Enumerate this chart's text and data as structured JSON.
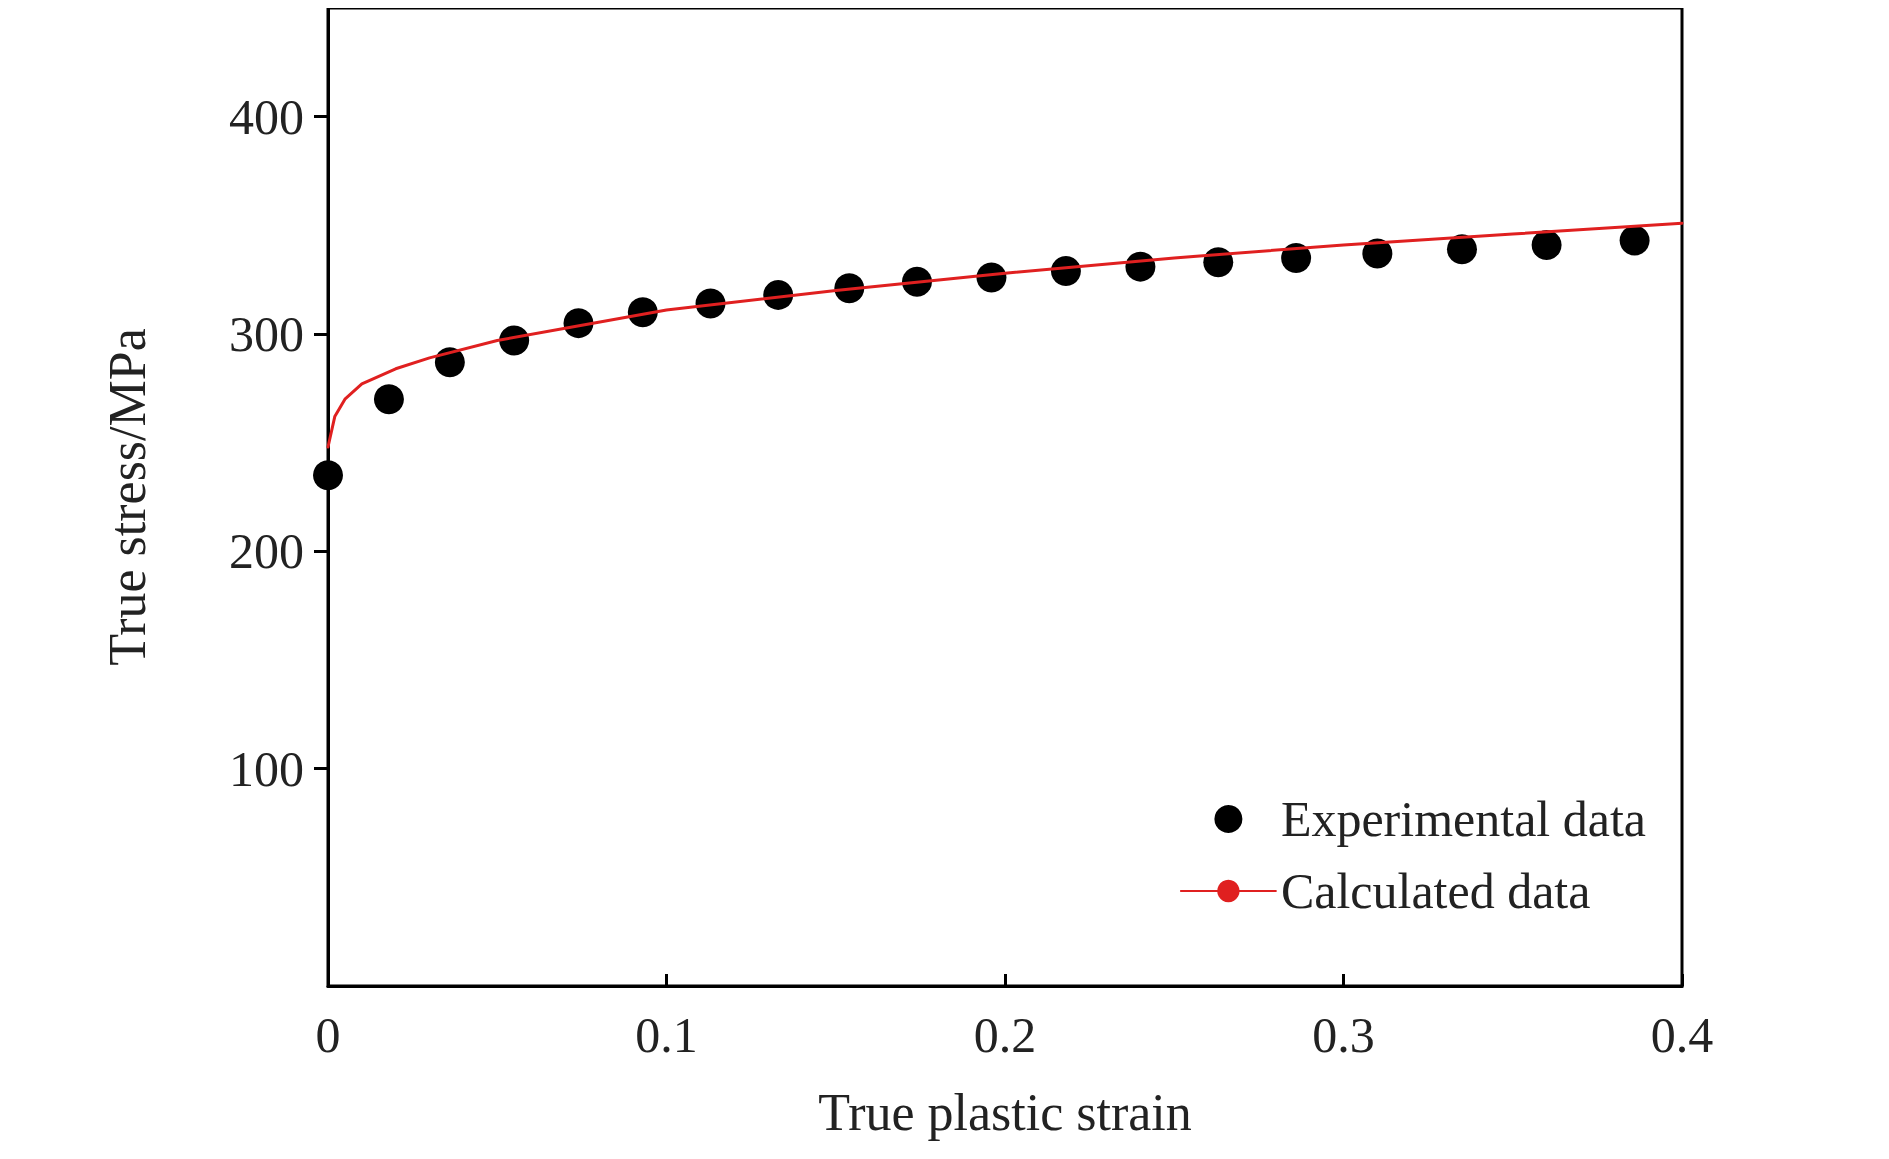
{
  "chart_data": {
    "type": "scatter",
    "xlabel": "True plastic strain",
    "ylabel": "True stress/MPa",
    "xlim": [
      0,
      0.4
    ],
    "xticks": [
      0,
      0.1,
      0.2,
      0.3,
      0.4
    ],
    "ylim": [
      0,
      450
    ],
    "yticks": [
      100,
      200,
      300,
      400
    ],
    "grid": false,
    "legend": "bottom right",
    "marker": "circle",
    "series": [
      {
        "name": "Experimental data",
        "color": "#000000",
        "x": [
          0,
          0.018,
          0.036,
          0.055,
          0.074,
          0.093,
          0.113,
          0.133,
          0.154,
          0.174,
          0.196,
          0.218,
          0.24,
          0.263,
          0.286,
          0.31,
          0.335,
          0.36,
          0.386
        ],
        "values": [
          235,
          270,
          287,
          297,
          305,
          310,
          314,
          318,
          321,
          324,
          326,
          329,
          331,
          333,
          335,
          337,
          339,
          341,
          343
        ]
      },
      {
        "name": "Calculated data",
        "type": "line",
        "marker": "none",
        "line_style": "solid",
        "color": "#e02020",
        "x": [
          0,
          0.002,
          0.005,
          0.01,
          0.02,
          0.03,
          0.05,
          0.075,
          0.1,
          0.15,
          0.2,
          0.25,
          0.3,
          0.35,
          0.4
        ],
        "values": [
          248,
          262,
          270,
          277,
          284,
          289,
          297,
          304,
          311,
          320,
          328,
          335,
          341,
          346,
          351
        ]
      }
    ]
  }
}
